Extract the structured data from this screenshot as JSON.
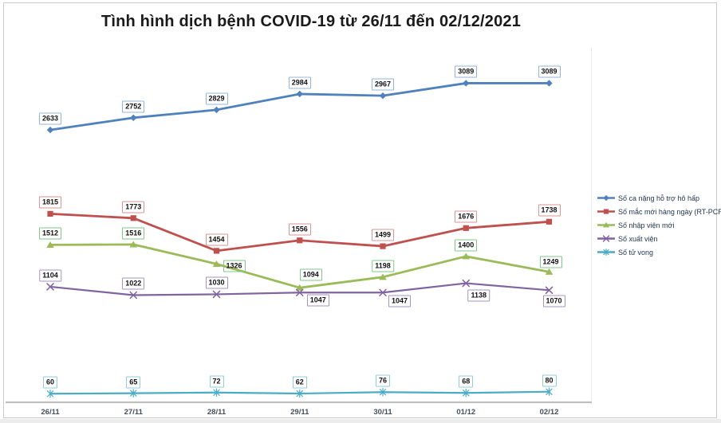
{
  "window": {
    "background": "#ffffff",
    "panel_border_color": "#cbcbcb"
  },
  "chart_data": {
    "type": "line",
    "title": "Tình hình dịch bệnh COVID-19 từ 26/11 đến 02/12/2021",
    "categories": [
      "26/11",
      "27/11",
      "28/11",
      "29/11",
      "30/11",
      "01/12",
      "02/12"
    ],
    "series": [
      {
        "name": "Số ca nặng hỗ trợ hô hấp",
        "color": "#4F81BD",
        "label_border": "#95B3D7",
        "marker": "diamond",
        "values": [
          2633,
          2752,
          2829,
          2984,
          2967,
          3089,
          3089
        ]
      },
      {
        "name": "Số mắc mới hàng ngày (RT-PCR)",
        "color": "#C0504D",
        "label_border": "#D99694",
        "marker": "square",
        "values": [
          1815,
          1773,
          1454,
          1556,
          1499,
          1676,
          1738
        ]
      },
      {
        "name": "Số nhập viện mới",
        "color": "#9BBB59",
        "label_border": "#7EC88B",
        "marker": "triangle",
        "values": [
          1512,
          1516,
          1326,
          1094,
          1198,
          1400,
          1249
        ]
      },
      {
        "name": "Số xuất viện",
        "color": "#8064A2",
        "label_border": "#A593C2",
        "marker": "x",
        "values": [
          1104,
          1022,
          1030,
          1047,
          1047,
          1138,
          1070
        ]
      },
      {
        "name": "Số tử vong",
        "color": "#4BACC6",
        "label_border": "#92CDDC",
        "marker": "asterisk",
        "values": [
          60,
          65,
          72,
          62,
          76,
          68,
          80
        ]
      }
    ],
    "ylim": [
      0,
      3500
    ],
    "grid": false,
    "data_labels": true,
    "legend_position": "right",
    "axis_line_color": "#BFBFBF",
    "tick_label_color": "#454f5c"
  }
}
